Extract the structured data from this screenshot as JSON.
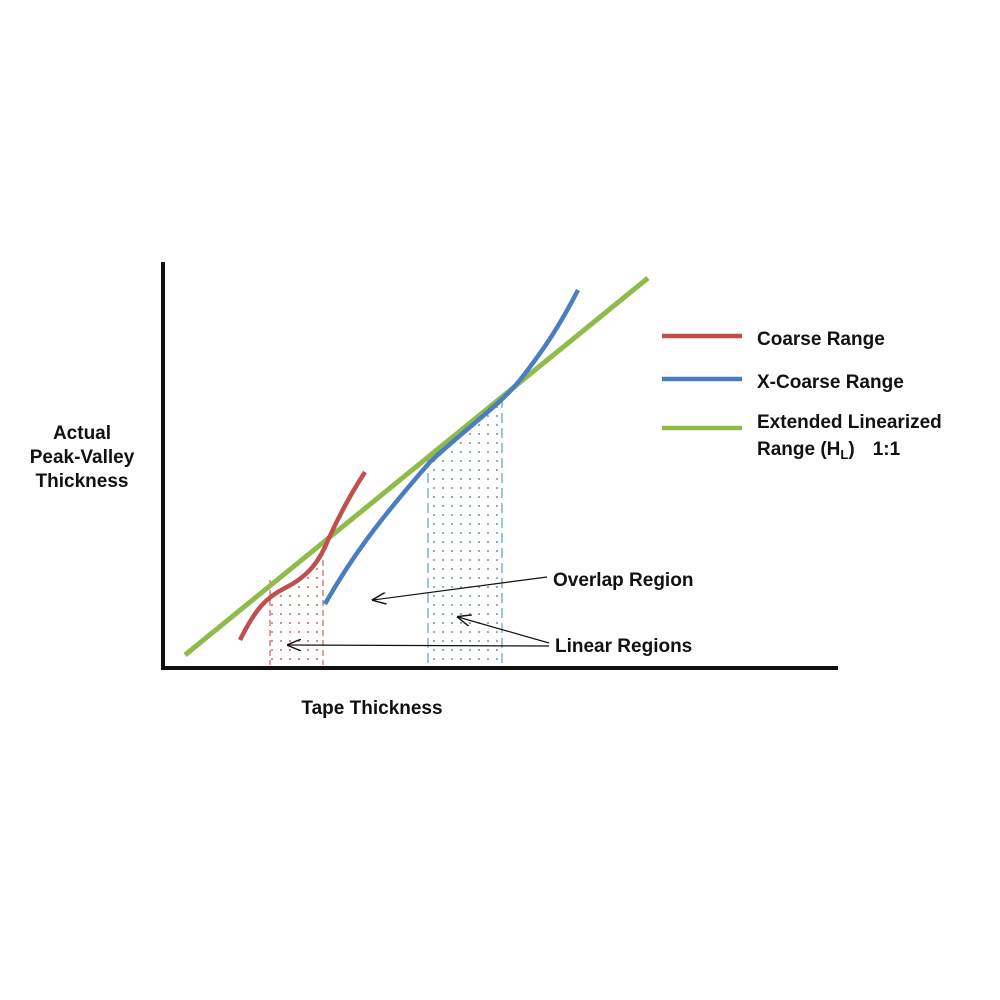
{
  "axes": {
    "y_label": [
      "Actual",
      "Peak-Valley",
      "Thickness"
    ],
    "x_label": "Tape Thickness"
  },
  "legend": [
    {
      "label": "Coarse Range"
    },
    {
      "label": "X-Coarse Range"
    },
    {
      "label_line": "Extended Linearized",
      "label_parts": [
        "Range (H",
        "L",
        ")",
        "1:1"
      ]
    }
  ],
  "annotations": [
    "Overlap Region",
    "Linear Regions"
  ]
}
